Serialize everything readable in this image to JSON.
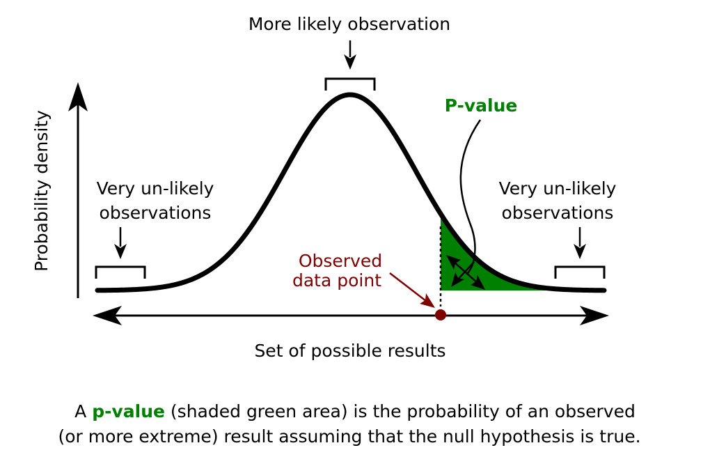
{
  "colors": {
    "curve": "#000000",
    "pvalue_fill": "#008000",
    "pvalue_label": "#008000",
    "observed_point": "#800000",
    "text": "#000000"
  },
  "labels": {
    "more_likely": "More likely observation",
    "pvalue": "P-value",
    "y_axis": "Probability density",
    "x_axis": "Set of possible results",
    "unlikely_left_line1": "Very un-likely",
    "unlikely_left_line2": "observations",
    "unlikely_right_line1": "Very un-likely",
    "unlikely_right_line2": "observations",
    "observed_line1": "Observed",
    "observed_line2": "data point"
  },
  "caption": {
    "line1_prefix": "A ",
    "line1_highlight": "p-value",
    "line1_suffix": " (shaded green area) is the probability of an observed",
    "line2": "(or more extreme) result assuming that the null hypothesis is true."
  },
  "icons": {
    "y_axis_arrow": "arrow-up-icon",
    "x_axis_arrow": "double-headed-arrow-icon",
    "observed_marker": "dot-icon"
  }
}
